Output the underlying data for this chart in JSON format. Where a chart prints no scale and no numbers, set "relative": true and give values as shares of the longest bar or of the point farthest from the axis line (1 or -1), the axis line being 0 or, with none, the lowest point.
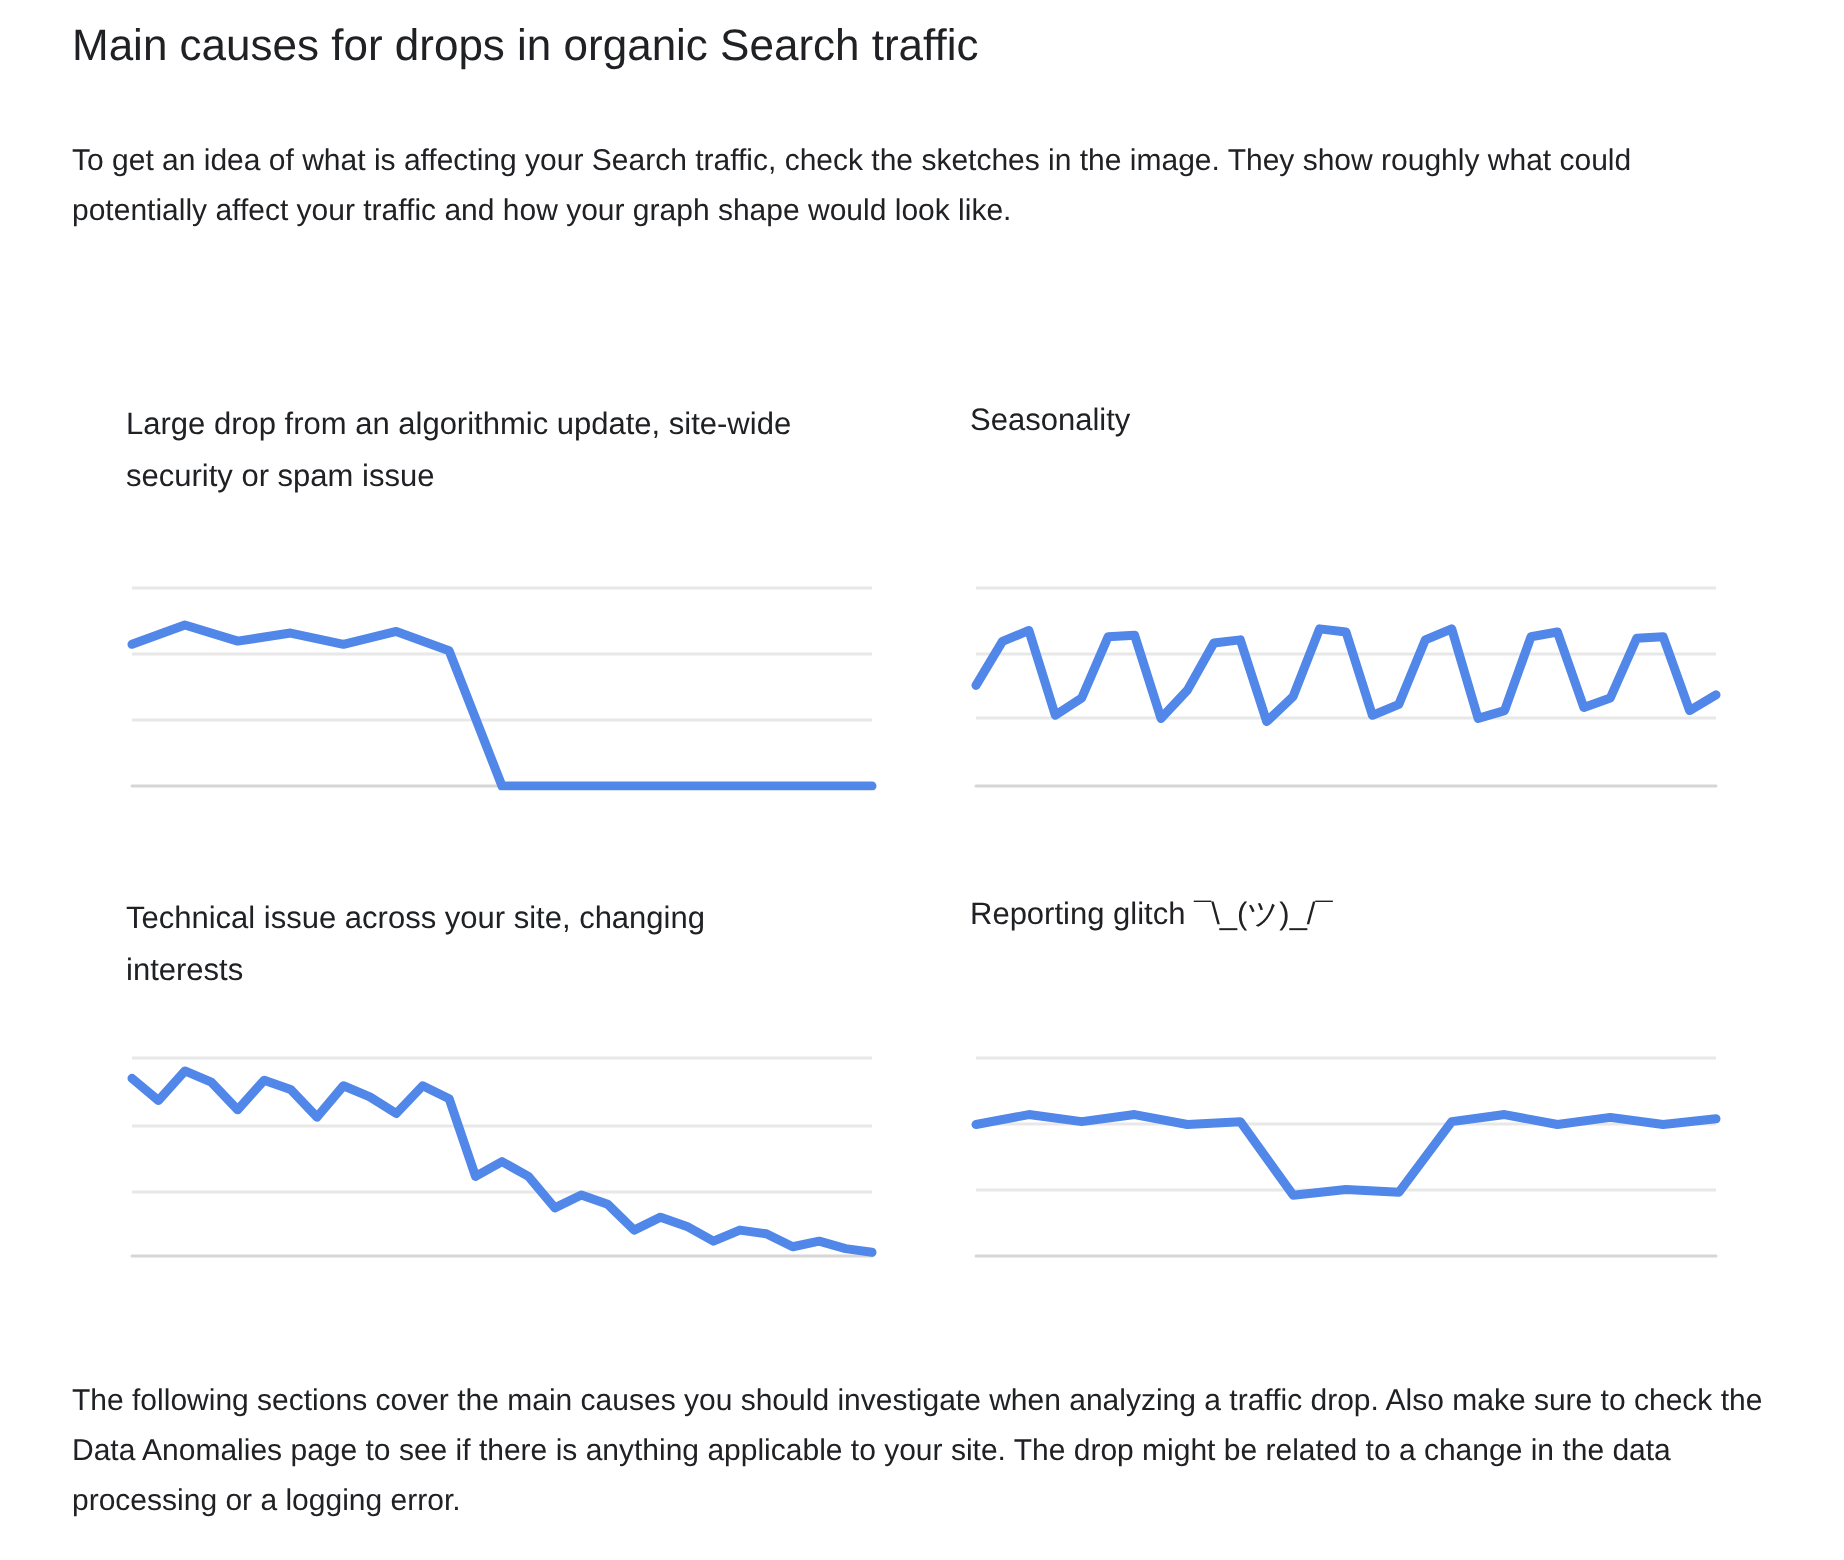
{
  "chart_data": [
    {
      "type": "other",
      "title": "Main causes for drops in organic Search traffic",
      "subtitle": "To get an idea of what is affecting your Search traffic, check the sketches in the image. They show roughly what could potentially affect your traffic and how your graph shape would look like.",
      "annotations": [
        "The following sections cover the main causes you should investigate when analyzing a traffic drop. Also make sure to check the Data Anomalies page to see if there is anything applicable to your site. The drop might be related to a change in the data processing or a logging error."
      ]
    },
    {
      "type": "line",
      "title": "Large drop from an algorithmic update, site-wide security or spam issue",
      "relative": true,
      "marker": "none",
      "categories": [
        null,
        null,
        null,
        null,
        null,
        null,
        null,
        null,
        null,
        null,
        null,
        null,
        null,
        null,
        null
      ],
      "color": "#5087e8",
      "values": [
        0.88,
        1,
        0.9,
        0.95,
        0.88,
        0.96,
        0.84,
        0,
        0,
        0,
        0,
        0,
        0,
        0,
        0
      ],
      "ref_lines": [
        {
          "axis": "y",
          "value": 0.41,
          "color": "#e8e8e8"
        },
        {
          "axis": "y",
          "value": 0.82,
          "color": "#e8e8e8"
        },
        {
          "axis": "y",
          "value": 1.23,
          "color": "#e8e8e8"
        }
      ]
    },
    {
      "type": "line",
      "title": "Seasonality",
      "relative": true,
      "marker": "none",
      "categories": [
        null,
        null,
        null,
        null,
        null,
        null,
        null,
        null,
        null,
        null,
        null,
        null,
        null,
        null,
        null,
        null,
        null,
        null,
        null,
        null,
        null,
        null,
        null,
        null,
        null,
        null,
        null,
        null,
        null
      ],
      "color": "#5087e8",
      "values": [
        0.64,
        0.92,
        0.99,
        0.45,
        0.56,
        0.95,
        0.96,
        0.43,
        0.61,
        0.91,
        0.93,
        0.41,
        0.57,
        1,
        0.98,
        0.45,
        0.52,
        0.93,
        1,
        0.43,
        0.48,
        0.95,
        0.98,
        0.5,
        0.56,
        0.94,
        0.95,
        0.48,
        0.58
      ],
      "ref_lines": [
        {
          "axis": "y",
          "value": 0.43,
          "color": "#e8e8e8"
        },
        {
          "axis": "y",
          "value": 0.84,
          "color": "#e8e8e8"
        },
        {
          "axis": "y",
          "value": 1.26,
          "color": "#e8e8e8"
        }
      ]
    },
    {
      "type": "line",
      "title": "Technical issue across your site, changing interests",
      "relative": true,
      "marker": "none",
      "categories": [
        null,
        null,
        null,
        null,
        null,
        null,
        null,
        null,
        null,
        null,
        null,
        null,
        null,
        null,
        null,
        null,
        null,
        null,
        null,
        null,
        null,
        null,
        null,
        null,
        null,
        null,
        null,
        null,
        null
      ],
      "color": "#5087e8",
      "values": [
        0.96,
        0.84,
        1,
        0.94,
        0.79,
        0.95,
        0.9,
        0.75,
        0.92,
        0.86,
        0.77,
        0.92,
        0.85,
        0.43,
        0.51,
        0.43,
        0.26,
        0.33,
        0.28,
        0.14,
        0.21,
        0.16,
        0.08,
        0.14,
        0.12,
        0.05,
        0.08,
        0.04,
        0.02
      ],
      "ref_lines": [
        {
          "axis": "y",
          "value": 0.35,
          "color": "#e8e8e8"
        },
        {
          "axis": "y",
          "value": 0.71,
          "color": "#e8e8e8"
        },
        {
          "axis": "y",
          "value": 1.07,
          "color": "#e8e8e8"
        }
      ]
    },
    {
      "type": "line",
      "title": "Reporting glitch ¯\\_(ツ)_/¯",
      "relative": true,
      "marker": "none",
      "categories": [
        null,
        null,
        null,
        null,
        null,
        null,
        null,
        null,
        null,
        null,
        null,
        null,
        null,
        null,
        null
      ],
      "color": "#5087e8",
      "values": [
        0.93,
        1,
        0.95,
        1,
        0.93,
        0.95,
        0.43,
        0.47,
        0.45,
        0.95,
        1,
        0.93,
        0.98,
        0.93,
        0.97
      ],
      "ref_lines": [
        {
          "axis": "y",
          "value": 0.47,
          "color": "#e8e8e8"
        },
        {
          "axis": "y",
          "value": 0.93,
          "color": "#e8e8e8"
        },
        {
          "axis": "y",
          "value": 1.4,
          "color": "#e8e8e8"
        }
      ]
    }
  ]
}
